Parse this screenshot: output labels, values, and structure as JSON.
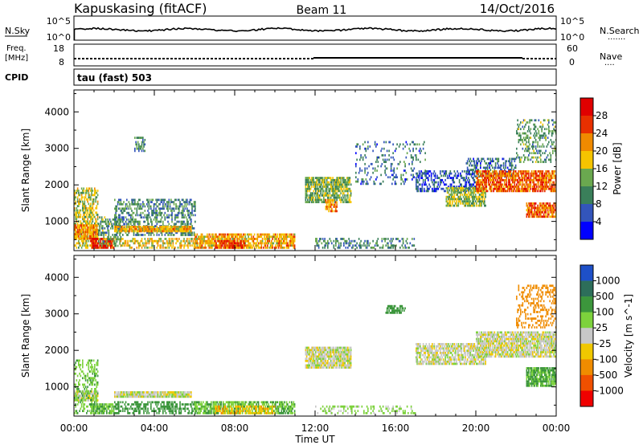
{
  "header": {
    "station": "Kapuskasing (fitACF)",
    "beam": "Beam 11",
    "date": "14/Oct/2016"
  },
  "noise_panel": {
    "left_label": "N.Sky",
    "left_ticks": [
      "10^5",
      "10^0"
    ],
    "right_ticks": [
      "10^5",
      "10^0"
    ],
    "right_label": "N.Search",
    "right_dots": "......."
  },
  "freq_panel": {
    "left_label_1": "Freq.",
    "left_label_2": "[MHz]",
    "left_ticks": [
      "18",
      "8"
    ],
    "right_ticks": [
      "60",
      "0"
    ],
    "right_label": "Nave",
    "right_dots": "...."
  },
  "cpid_panel": {
    "label": "CPID",
    "mode": "tau (fast) 503"
  },
  "chart_data": [
    {
      "type": "heatmap",
      "name": "power",
      "ylabel": "Slant Range [km]",
      "xlabel": "Time UT",
      "y_ticks": [
        "1000",
        "2000",
        "3000",
        "4000"
      ],
      "x_ticks": [
        "00:00",
        "04:00",
        "08:00",
        "12:00",
        "16:00",
        "20:00",
        "00:00"
      ],
      "ylim": [
        200,
        4600
      ],
      "xlim": [
        0,
        24
      ],
      "colorbar": {
        "label": "Power [dB]",
        "ticks": [
          "4",
          "8",
          "12",
          "16",
          "20",
          "24",
          "28"
        ],
        "colors": [
          "#0000ff",
          "#3355bb",
          "#3a7f5a",
          "#6aa84f",
          "#f5c400",
          "#f08a00",
          "#e83000",
          "#e00000"
        ]
      },
      "regions": [
        {
          "t0": 0.0,
          "t1": 1.2,
          "r0": 250,
          "r1": 1900,
          "v": 16,
          "density": 0.55
        },
        {
          "t0": 0.0,
          "t1": 1.2,
          "r0": 500,
          "r1": 900,
          "v": 22,
          "density": 0.85
        },
        {
          "t0": 0.8,
          "t1": 2.0,
          "r0": 250,
          "r1": 550,
          "v": 27,
          "density": 0.8
        },
        {
          "t0": 1.2,
          "t1": 2.3,
          "r0": 300,
          "r1": 1100,
          "v": 12,
          "density": 0.45
        },
        {
          "t0": 2.0,
          "t1": 6.0,
          "r0": 600,
          "r1": 1600,
          "v": 10,
          "density": 0.45
        },
        {
          "t0": 2.0,
          "t1": 5.8,
          "r0": 700,
          "r1": 880,
          "v": 20,
          "density": 0.85
        },
        {
          "t0": 2.3,
          "t1": 6.0,
          "r0": 250,
          "r1": 550,
          "v": 18,
          "density": 0.5
        },
        {
          "t0": 6.0,
          "t1": 11.0,
          "r0": 250,
          "r1": 620,
          "v": 20,
          "density": 0.75
        },
        {
          "t0": 7.0,
          "t1": 8.5,
          "r0": 250,
          "r1": 480,
          "v": 27,
          "density": 0.6
        },
        {
          "t0": 3.0,
          "t1": 3.5,
          "r0": 2900,
          "r1": 3300,
          "v": 10,
          "density": 0.5
        },
        {
          "t0": 11.5,
          "t1": 13.8,
          "r0": 1500,
          "r1": 2200,
          "v": 14,
          "density": 0.7
        },
        {
          "t0": 12.5,
          "t1": 13.1,
          "r0": 1250,
          "r1": 1600,
          "v": 22,
          "density": 0.7
        },
        {
          "t0": 12.0,
          "t1": 17.0,
          "r0": 250,
          "r1": 500,
          "v": 10,
          "density": 0.35
        },
        {
          "t0": 14.0,
          "t1": 17.5,
          "r0": 2000,
          "r1": 3200,
          "v": 8,
          "density": 0.15
        },
        {
          "t0": 17.0,
          "t1": 20.0,
          "r0": 1800,
          "r1": 2400,
          "v": 6,
          "density": 0.4
        },
        {
          "t0": 18.5,
          "t1": 20.5,
          "r0": 1400,
          "r1": 1900,
          "v": 15,
          "density": 0.7
        },
        {
          "t0": 19.5,
          "t1": 22.0,
          "r0": 2200,
          "r1": 2700,
          "v": 8,
          "density": 0.45
        },
        {
          "t0": 20.0,
          "t1": 24.0,
          "r0": 1800,
          "r1": 2400,
          "v": 24,
          "density": 0.75
        },
        {
          "t0": 22.5,
          "t1": 24.0,
          "r0": 1100,
          "r1": 1500,
          "v": 24,
          "density": 0.75
        },
        {
          "t0": 22.0,
          "t1": 24.0,
          "r0": 2600,
          "r1": 3800,
          "v": 12,
          "density": 0.3
        }
      ]
    },
    {
      "type": "heatmap",
      "name": "velocity",
      "ylabel": "Slant Range [km]",
      "xlabel": "Time UT",
      "y_ticks": [
        "1000",
        "2000",
        "3000",
        "4000"
      ],
      "x_ticks": [
        "00:00",
        "04:00",
        "08:00",
        "12:00",
        "16:00",
        "20:00",
        "00:00"
      ],
      "ylim": [
        200,
        4600
      ],
      "xlim": [
        0,
        24
      ],
      "colorbar": {
        "label": "Velocity [m s^-1]",
        "ticks": [
          "1000",
          "500",
          "100",
          "25",
          "-25",
          "-100",
          "-500",
          "-1000"
        ],
        "colors": [
          "#1e50c8",
          "#2d6e5a",
          "#3c963c",
          "#7dd23c",
          "#c8c8c8",
          "#f0c800",
          "#f08c00",
          "#f05000",
          "#f00000"
        ]
      },
      "regions": [
        {
          "t0": 0.0,
          "t1": 1.2,
          "r0": 600,
          "r1": 850,
          "v": 0,
          "density": 0.9
        },
        {
          "t0": 0.0,
          "t1": 1.2,
          "r0": 250,
          "r1": 1700,
          "v": 80,
          "density": 0.35
        },
        {
          "t0": 0.8,
          "t1": 2.0,
          "r0": 250,
          "r1": 550,
          "v": 100,
          "density": 0.75
        },
        {
          "t0": 2.0,
          "t1": 5.8,
          "r0": 700,
          "r1": 880,
          "v": 0,
          "density": 0.9
        },
        {
          "t0": 2.0,
          "t1": 6.0,
          "r0": 250,
          "r1": 600,
          "v": 150,
          "density": 0.45
        },
        {
          "t0": 6.0,
          "t1": 11.0,
          "r0": 250,
          "r1": 600,
          "v": 90,
          "density": 0.7
        },
        {
          "t0": 7.0,
          "t1": 10.0,
          "r0": 250,
          "r1": 450,
          "v": -80,
          "density": 0.5
        },
        {
          "t0": 11.5,
          "t1": 13.8,
          "r0": 1500,
          "r1": 2100,
          "v": 0,
          "density": 0.85
        },
        {
          "t0": 12.0,
          "t1": 17.0,
          "r0": 250,
          "r1": 450,
          "v": 50,
          "density": 0.3
        },
        {
          "t0": 15.5,
          "t1": 16.5,
          "r0": 3000,
          "r1": 3200,
          "v": 150,
          "density": 0.6
        },
        {
          "t0": 17.0,
          "t1": 20.5,
          "r0": 1600,
          "r1": 2200,
          "v": 0,
          "density": 0.7
        },
        {
          "t0": 20.0,
          "t1": 24.0,
          "r0": 1800,
          "r1": 2500,
          "v": 0,
          "density": 0.8
        },
        {
          "t0": 22.5,
          "t1": 24.0,
          "r0": 1000,
          "r1": 1500,
          "v": 110,
          "density": 0.8
        },
        {
          "t0": 22.0,
          "t1": 24.0,
          "r0": 2600,
          "r1": 3800,
          "v": -150,
          "density": 0.3
        }
      ]
    }
  ]
}
